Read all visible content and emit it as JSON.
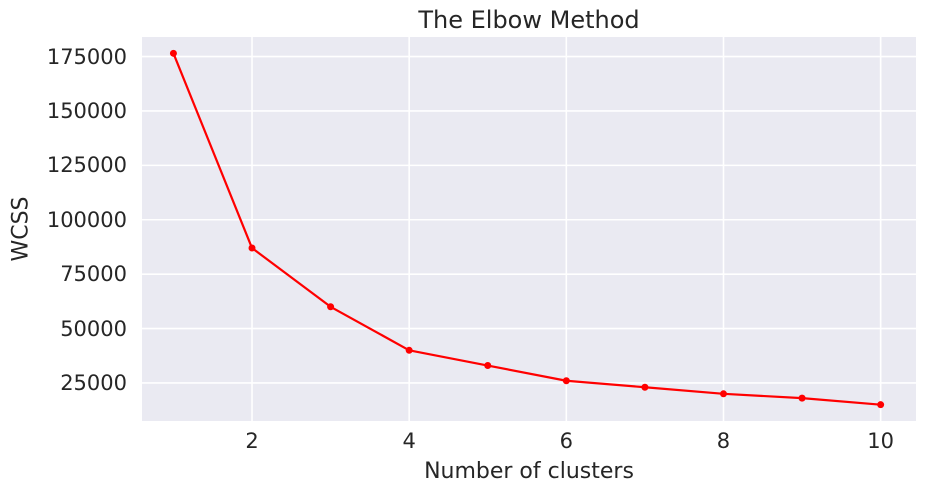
{
  "figure": {
    "background_color": "#ffffff",
    "plot_background_color": "#eaeaf2",
    "grid_color": "#ffffff",
    "text_color": "#262626",
    "accent_color": "#ff0000"
  },
  "chart_data": {
    "type": "line",
    "title": "The Elbow Method",
    "xlabel": "Number of clusters",
    "ylabel": "WCSS",
    "x": [
      1,
      2,
      3,
      4,
      5,
      6,
      7,
      8,
      9,
      10
    ],
    "y": [
      176500,
      87000,
      60000,
      40000,
      33000,
      26000,
      23000,
      20000,
      18000,
      15000
    ],
    "series_name": "WCSS",
    "line_color": "#ff0000",
    "marker": "circle",
    "marker_color": "#ff0000",
    "xlim": [
      0.6,
      10.45
    ],
    "ylim": [
      7500,
      184000
    ],
    "xticks": [
      2,
      4,
      6,
      8,
      10
    ],
    "xtick_labels": [
      "2",
      "4",
      "6",
      "8",
      "10"
    ],
    "yticks": [
      25000,
      50000,
      75000,
      100000,
      125000,
      150000,
      175000
    ],
    "ytick_labels": [
      "25000",
      "50000",
      "75000",
      "100000",
      "125000",
      "150000",
      "175000"
    ],
    "grid": true,
    "legend": false
  }
}
